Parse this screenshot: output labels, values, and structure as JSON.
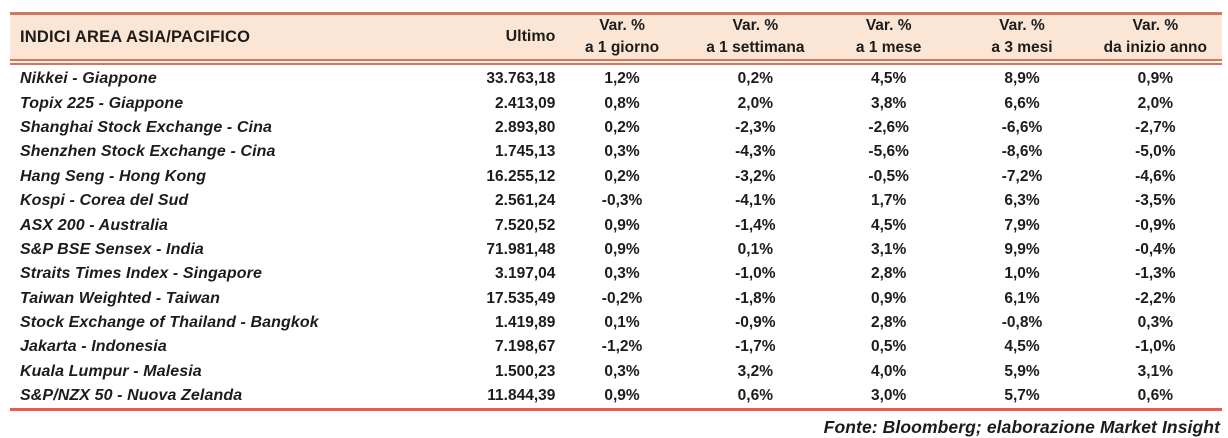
{
  "table": {
    "title": "INDICI AREA ASIA/PACIFICO",
    "columns": {
      "ultimo": "Ultimo",
      "var_label": "Var. %",
      "var_periods": [
        "a 1 giorno",
        "a 1 settimana",
        "a 1 mese",
        "a 3 mesi",
        "da inizio anno"
      ]
    },
    "rows": [
      {
        "name": "Nikkei - Giappone",
        "ultimo": "33.763,18",
        "vars": [
          "1,2%",
          "0,2%",
          "4,5%",
          "8,9%",
          "0,9%"
        ]
      },
      {
        "name": "Topix 225 - Giappone",
        "ultimo": "2.413,09",
        "vars": [
          "0,8%",
          "2,0%",
          "3,8%",
          "6,6%",
          "2,0%"
        ]
      },
      {
        "name": "Shanghai Stock Exchange - Cina",
        "ultimo": "2.893,80",
        "vars": [
          "0,2%",
          "-2,3%",
          "-2,6%",
          "-6,6%",
          "-2,7%"
        ]
      },
      {
        "name": "Shenzhen Stock Exchange - Cina",
        "ultimo": "1.745,13",
        "vars": [
          "0,3%",
          "-4,3%",
          "-5,6%",
          "-8,6%",
          "-5,0%"
        ]
      },
      {
        "name": "Hang Seng - Hong Kong",
        "ultimo": "16.255,12",
        "vars": [
          "0,2%",
          "-3,2%",
          "-0,5%",
          "-7,2%",
          "-4,6%"
        ]
      },
      {
        "name": "Kospi - Corea del Sud",
        "ultimo": "2.561,24",
        "vars": [
          "-0,3%",
          "-4,1%",
          "1,7%",
          "6,3%",
          "-3,5%"
        ]
      },
      {
        "name": "ASX 200 - Australia",
        "ultimo": "7.520,52",
        "vars": [
          "0,9%",
          "-1,4%",
          "4,5%",
          "7,9%",
          "-0,9%"
        ]
      },
      {
        "name": "S&P BSE Sensex - India",
        "ultimo": "71.981,48",
        "vars": [
          "0,9%",
          "0,1%",
          "3,1%",
          "9,9%",
          "-0,4%"
        ]
      },
      {
        "name": "Straits Times Index - Singapore",
        "ultimo": "3.197,04",
        "vars": [
          "0,3%",
          "-1,0%",
          "2,8%",
          "1,0%",
          "-1,3%"
        ]
      },
      {
        "name": "Taiwan Weighted - Taiwan",
        "ultimo": "17.535,49",
        "vars": [
          "-0,2%",
          "-1,8%",
          "0,9%",
          "6,1%",
          "-2,2%"
        ]
      },
      {
        "name": "Stock Exchange of Thailand - Bangkok",
        "ultimo": "1.419,89",
        "vars": [
          "0,1%",
          "-0,9%",
          "2,8%",
          "-0,8%",
          "0,3%"
        ]
      },
      {
        "name": "Jakarta - Indonesia",
        "ultimo": "7.198,67",
        "vars": [
          "-1,2%",
          "-1,7%",
          "0,5%",
          "4,5%",
          "-1,0%"
        ]
      },
      {
        "name": "Kuala Lumpur - Malesia",
        "ultimo": "1.500,23",
        "vars": [
          "0,3%",
          "3,2%",
          "4,0%",
          "5,9%",
          "3,1%"
        ]
      },
      {
        "name": "S&P/NZX 50 - Nuova Zelanda",
        "ultimo": "11.844,39",
        "vars": [
          "0,9%",
          "0,6%",
          "3,0%",
          "5,7%",
          "0,6%"
        ]
      }
    ]
  },
  "footer": {
    "source": "Fonte: Bloomberg; elaborazione Market Insight"
  },
  "colors": {
    "accent": "#d1775e",
    "header_bg": "#fbe6d5",
    "bottom_rule": "#ee5a47",
    "text": "#1c1c1c"
  }
}
